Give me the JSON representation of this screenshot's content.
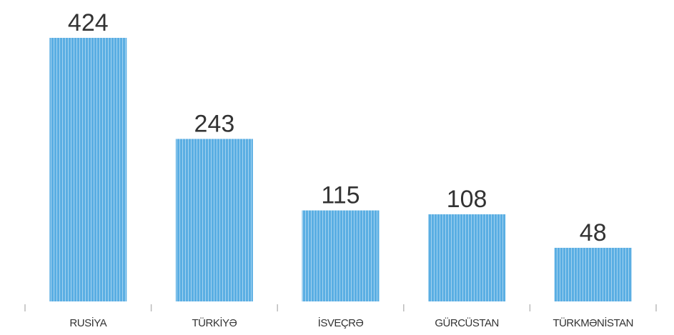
{
  "chart_data": {
    "type": "bar",
    "categories": [
      "RUSİYA",
      "TÜRKİYƏ",
      "İSVEÇRƏ",
      "GÜRCÜSTAN",
      "TÜRKMƏNİSTAN"
    ],
    "values": [
      424,
      243,
      115,
      108,
      48
    ],
    "color": "#5aaee3",
    "ylim": [
      -48,
      424
    ]
  }
}
